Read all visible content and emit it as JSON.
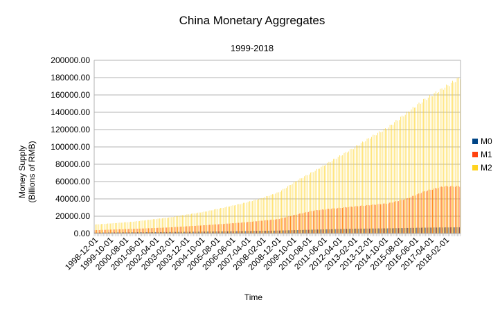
{
  "chart_data": {
    "type": "bar",
    "title": "China Monetary Aggregates",
    "subtitle": "1999-2018",
    "xlabel": "Time",
    "ylabel_line1": "Money Supply",
    "ylabel_line2": "(Billions of RMB)",
    "ylim": [
      0,
      200000
    ],
    "yticks": [
      "0.00",
      "20000.00",
      "40000.00",
      "60000.00",
      "80000.00",
      "100000.00",
      "120000.00",
      "140000.00",
      "160000.00",
      "180000.00",
      "200000.00"
    ],
    "xticks": [
      "1998-12-01",
      "1999-10-01",
      "2000-08-01",
      "2001-06-01",
      "2002-04-01",
      "2003-02-01",
      "2003-12-01",
      "2004-10-01",
      "2005-08-01",
      "2006-06-01",
      "2007-04-01",
      "2008-02-01",
      "2008-12-01",
      "2009-10-01",
      "2010-08-01",
      "2011-06-01",
      "2012-04-01",
      "2013-02-01",
      "2013-12-01",
      "2014-10-01",
      "2015-08-01",
      "2016-06-01",
      "2017-04-01",
      "2018-02-01"
    ],
    "start": "1998-12-01",
    "end": "2018-11-01",
    "frequency": "monthly",
    "grid": true,
    "legend_position": "right",
    "series": [
      {
        "name": "M0",
        "color": "#004586",
        "anchors": [
          [
            "1998-12-01",
            1100
          ],
          [
            "2002-12-01",
            1750
          ],
          [
            "2006-12-01",
            2700
          ],
          [
            "2008-12-01",
            3400
          ],
          [
            "2010-12-01",
            4500
          ],
          [
            "2012-12-01",
            5500
          ],
          [
            "2014-12-01",
            6000
          ],
          [
            "2016-12-01",
            6800
          ],
          [
            "2018-11-01",
            7200
          ]
        ]
      },
      {
        "name": "M1",
        "color": "#ff420e",
        "anchors": [
          [
            "1998-12-01",
            3900
          ],
          [
            "2000-12-01",
            5300
          ],
          [
            "2002-12-01",
            7000
          ],
          [
            "2004-12-01",
            9600
          ],
          [
            "2006-12-01",
            12600
          ],
          [
            "2008-12-01",
            16600
          ],
          [
            "2009-12-01",
            22000
          ],
          [
            "2010-12-01",
            26700
          ],
          [
            "2012-12-01",
            30900
          ],
          [
            "2014-12-01",
            34800
          ],
          [
            "2015-12-01",
            40100
          ],
          [
            "2016-12-01",
            48700
          ],
          [
            "2017-12-01",
            54400
          ],
          [
            "2018-11-01",
            54500
          ]
        ]
      },
      {
        "name": "M2",
        "color": "#ffd320",
        "anchors": [
          [
            "1998-12-01",
            10400
          ],
          [
            "2000-12-01",
            13500
          ],
          [
            "2002-12-01",
            18500
          ],
          [
            "2004-12-01",
            25300
          ],
          [
            "2006-12-01",
            34600
          ],
          [
            "2007-12-01",
            40300
          ],
          [
            "2008-12-01",
            47500
          ],
          [
            "2009-12-01",
            61000
          ],
          [
            "2010-12-01",
            72600
          ],
          [
            "2011-12-01",
            85200
          ],
          [
            "2012-12-01",
            97400
          ],
          [
            "2013-12-01",
            110700
          ],
          [
            "2014-12-01",
            122800
          ],
          [
            "2015-12-01",
            139200
          ],
          [
            "2016-12-01",
            155000
          ],
          [
            "2017-12-01",
            167700
          ],
          [
            "2018-11-01",
            180000
          ]
        ]
      }
    ]
  }
}
